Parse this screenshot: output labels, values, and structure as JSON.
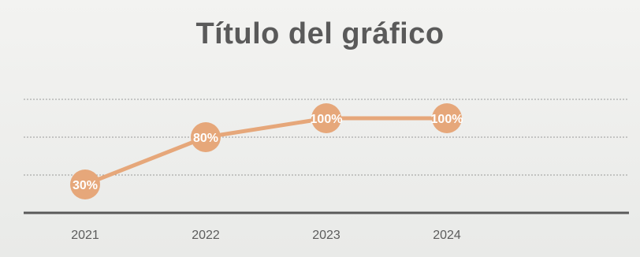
{
  "chart_data": {
    "type": "line",
    "title": "Título del gráfico",
    "categories": [
      "2021",
      "2022",
      "2023",
      "2024"
    ],
    "series": [
      {
        "values": [
          30,
          80,
          100,
          100
        ],
        "labels": [
          "30%",
          "80%",
          "100%",
          "100%"
        ]
      }
    ],
    "ylim": [
      0,
      140
    ],
    "grid": true,
    "legend": "none",
    "color": "#e6a77a"
  }
}
